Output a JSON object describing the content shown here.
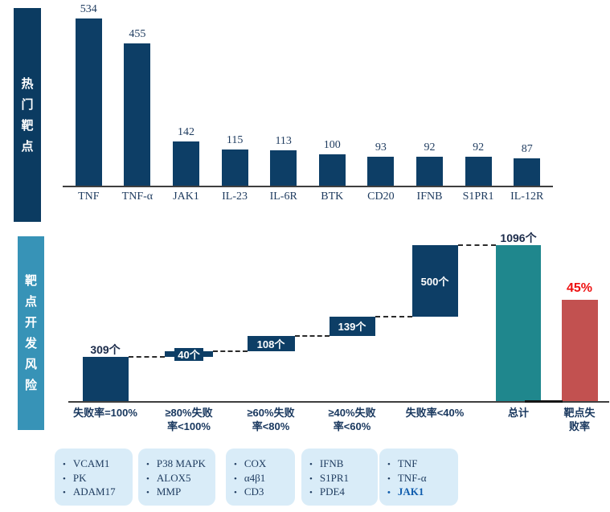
{
  "sidebars": {
    "top": {
      "label": "热门靶点"
    },
    "bottom": {
      "label": "靶点开发风险"
    }
  },
  "colors": {
    "navy": "#0d3e66",
    "sidebar_navy": "#0b3b61",
    "sidebar_blue": "#3793b7",
    "teal_total": "#1f878d",
    "red_bar": "#c25150",
    "red_label": "#ee1111",
    "label_dark": "#1d3a5e",
    "highlight_blue": "#0f5cad",
    "box_bg": "#d9ecf8"
  },
  "chart_data": [
    {
      "type": "bar",
      "title": "热门靶点",
      "categories": [
        "TNF",
        "TNF-α",
        "JAK1",
        "IL-23",
        "IL-6R",
        "BTK",
        "CD20",
        "IFNB",
        "S1PR1",
        "IL-12R"
      ],
      "values": [
        534,
        455,
        142,
        115,
        113,
        100,
        93,
        92,
        92,
        87
      ],
      "ylim": [
        0,
        534
      ],
      "grid": false,
      "legend": false,
      "data_labels": true
    },
    {
      "type": "waterfall",
      "title": "靶点开发风险",
      "categories": [
        "失败率=100%",
        "≥80%失败率<100%",
        "≥60%失败率<80%",
        "≥40%失败率<60%",
        "失败率<40%",
        "总计",
        "靶点失败率"
      ],
      "category_lines": [
        [
          "失败率=100%"
        ],
        [
          "≥80%失败",
          "率<100%"
        ],
        [
          "≥60%失败",
          "率<80%"
        ],
        [
          "≥40%失败",
          "率<60%"
        ],
        [
          "失败率<40%"
        ],
        [
          "总计"
        ],
        [
          "靶点失",
          "败率"
        ]
      ],
      "segments": [
        309,
        40,
        108,
        139,
        500
      ],
      "segment_labels": [
        "309个",
        "40个",
        "108个",
        "139个",
        "500个"
      ],
      "total_value": 1096,
      "total_label": "1096个",
      "failure_rate_percent": 45,
      "failure_rate_label": "45%",
      "grid": false,
      "connector_style": "dashed"
    }
  ],
  "target_groups": [
    {
      "items": [
        "VCAM1",
        "PK",
        "ADAM17"
      ],
      "highlight_index": -1
    },
    {
      "items": [
        "P38 MAPK",
        "ALOX5",
        "MMP"
      ],
      "highlight_index": -1
    },
    {
      "items": [
        "COX",
        "α4β1",
        "CD3"
      ],
      "highlight_index": -1
    },
    {
      "items": [
        "IFNB",
        "S1PR1",
        "PDE4"
      ],
      "highlight_index": -1
    },
    {
      "items": [
        "TNF",
        "TNF-α",
        "JAK1"
      ],
      "highlight_index": 2
    }
  ]
}
